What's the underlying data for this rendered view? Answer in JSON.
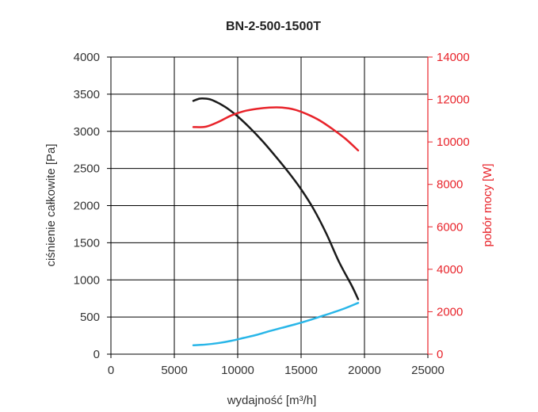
{
  "chart_data": {
    "type": "line",
    "title": "BN-2-500-1500T",
    "xlabel": "wydajność [m³/h]",
    "ylabel_left": "ciśnienie całkowite [Pa]",
    "ylabel_right": "pobór mocy [W]",
    "xlim": [
      0,
      25000
    ],
    "ylim_left": [
      0,
      4000
    ],
    "ylim_right": [
      0,
      14000
    ],
    "x_ticks": [
      "0",
      "5000",
      "10000",
      "15000",
      "20000",
      "25000"
    ],
    "y_left_ticks": [
      "0",
      "500",
      "1000",
      "1500",
      "2000",
      "2500",
      "3000",
      "3500",
      "4000"
    ],
    "y_right_ticks": [
      "0",
      "2000",
      "4000",
      "6000",
      "8000",
      "10000",
      "12000",
      "14000"
    ],
    "grid": true,
    "colors": {
      "left_axis": "#333333",
      "right_axis": "#e8232a",
      "grid": "#000000"
    },
    "series": [
      {
        "axis": "left",
        "color": "#1a1a1a",
        "x": [
          6500,
          7000,
          7500,
          8000,
          9000,
          10000,
          11000,
          12000,
          13000,
          14000,
          15000,
          16000,
          17000,
          18000,
          19000,
          19500
        ],
        "y": [
          3410,
          3440,
          3440,
          3420,
          3330,
          3200,
          3040,
          2860,
          2660,
          2450,
          2220,
          1950,
          1620,
          1240,
          920,
          740
        ]
      },
      {
        "axis": "right",
        "color": "#e8232a",
        "x": [
          6500,
          7500,
          8500,
          9500,
          10500,
          11500,
          12500,
          13500,
          14500,
          15500,
          16500,
          17500,
          18500,
          19500
        ],
        "y": [
          10700,
          10720,
          10950,
          11250,
          11450,
          11560,
          11620,
          11620,
          11520,
          11300,
          11000,
          10600,
          10150,
          9600
        ]
      },
      {
        "axis": "left",
        "color": "#29b6e8",
        "x": [
          6500,
          7500,
          8500,
          9500,
          10500,
          11500,
          12500,
          13500,
          14500,
          15500,
          16500,
          17500,
          18500,
          19500
        ],
        "y": [
          120,
          130,
          150,
          180,
          220,
          260,
          310,
          355,
          400,
          450,
          505,
          560,
          620,
          690
        ]
      }
    ]
  }
}
